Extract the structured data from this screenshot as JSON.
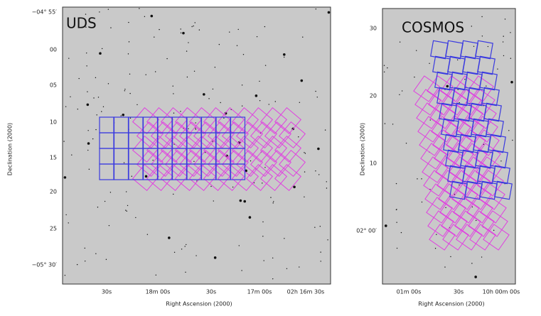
{
  "panels": [
    {
      "label": "UDS",
      "y_axis_label": "Declination (2000)",
      "x_axis_label": "Right Ascension (2000)",
      "y_ticks": [
        "−04° 55′",
        "00",
        "05",
        "10",
        "15",
        "20",
        "25",
        "−05° 30′"
      ],
      "x_ticks": [
        "30s",
        "18m 00s",
        "30s",
        "17m 00s",
        "02h 16m 30s"
      ]
    },
    {
      "label": "COSMOS",
      "y_axis_label": "Declination (2000)",
      "x_axis_label": "Right Ascension (2000)",
      "y_ticks": [
        "30",
        "20",
        "10",
        "02° 00′"
      ],
      "x_ticks": [
        "01m 00s",
        "30s",
        "10h 00m 00s"
      ]
    }
  ]
}
